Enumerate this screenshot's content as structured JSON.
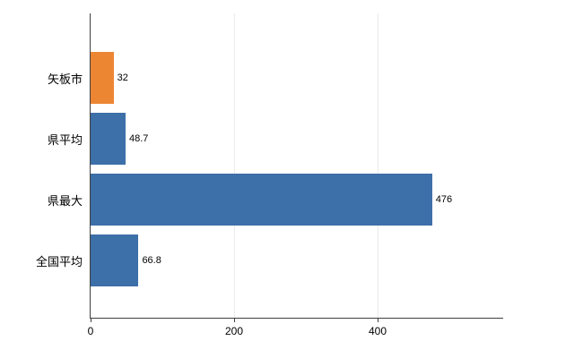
{
  "chart_data": {
    "type": "bar",
    "orientation": "horizontal",
    "title": "",
    "xlabel": "",
    "ylabel": "",
    "categories": [
      "矢板市",
      "県平均",
      "県最大",
      "全国平均"
    ],
    "values": [
      32,
      48.7,
      476,
      66.8
    ],
    "value_labels": [
      "32",
      "48.7",
      "476",
      "66.8"
    ],
    "bar_colors": [
      "#ED8633",
      "#3D6FA8",
      "#3D6FA8",
      "#3D6FA8"
    ],
    "xlim": [
      0,
      575
    ],
    "x_ticks": [
      0,
      200,
      400
    ],
    "x_tick_labels": [
      "0",
      "200",
      "400"
    ],
    "gridline_x": [
      200,
      400
    ],
    "grid": "vertical-light",
    "legend": "none",
    "colors": {
      "highlight_bar": "#ED8633",
      "default_bar": "#3D6FA8",
      "axis": "#3f3f3f",
      "gridline": "#ebebeb",
      "text": "#000000"
    }
  }
}
